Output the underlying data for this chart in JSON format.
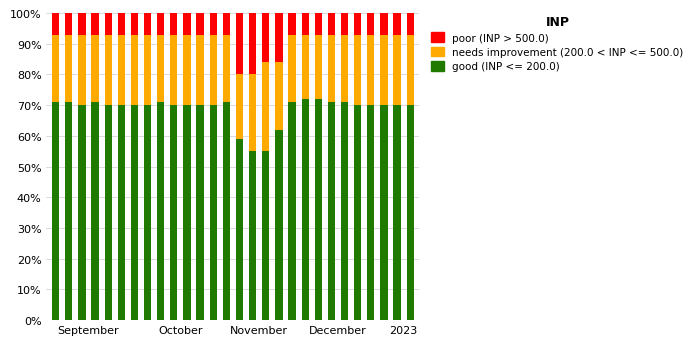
{
  "title": "INP",
  "legend_labels": [
    "poor (INP > 500.0)",
    "needs improvement (200.0 < INP <= 500.0)",
    "good (INP <= 200.0)"
  ],
  "colors": {
    "poor": "#ff0000",
    "needs_improvement": "#ffaa00",
    "good": "#207a00"
  },
  "x_tick_labels": [
    "September",
    "October",
    "November",
    "December",
    "2023"
  ],
  "bar_width": 0.55,
  "good": [
    71,
    71,
    70,
    71,
    70,
    70,
    70,
    70,
    71,
    70,
    70,
    70,
    70,
    71,
    59,
    55,
    55,
    62,
    71,
    72,
    72,
    71,
    71,
    70,
    70,
    70,
    70,
    70
  ],
  "needs": [
    22,
    22,
    23,
    22,
    23,
    23,
    23,
    23,
    22,
    23,
    23,
    23,
    23,
    22,
    21,
    25,
    29,
    22,
    22,
    21,
    21,
    22,
    22,
    23,
    23,
    23,
    23,
    23
  ],
  "poor": [
    7,
    7,
    7,
    7,
    7,
    7,
    7,
    7,
    7,
    7,
    7,
    7,
    7,
    7,
    20,
    20,
    16,
    16,
    7,
    7,
    7,
    7,
    7,
    7,
    7,
    7,
    7,
    7
  ],
  "ylim": [
    0,
    100
  ],
  "yticks": [
    0,
    10,
    20,
    30,
    40,
    50,
    60,
    70,
    80,
    90,
    100
  ],
  "background_color": "#ffffff",
  "grid_color": "#cccccc",
  "figsize": [
    6.78,
    3.53
  ],
  "dpi": 100,
  "x_tick_positions": [
    2.5,
    9.5,
    15.5,
    21.5,
    26.5
  ]
}
